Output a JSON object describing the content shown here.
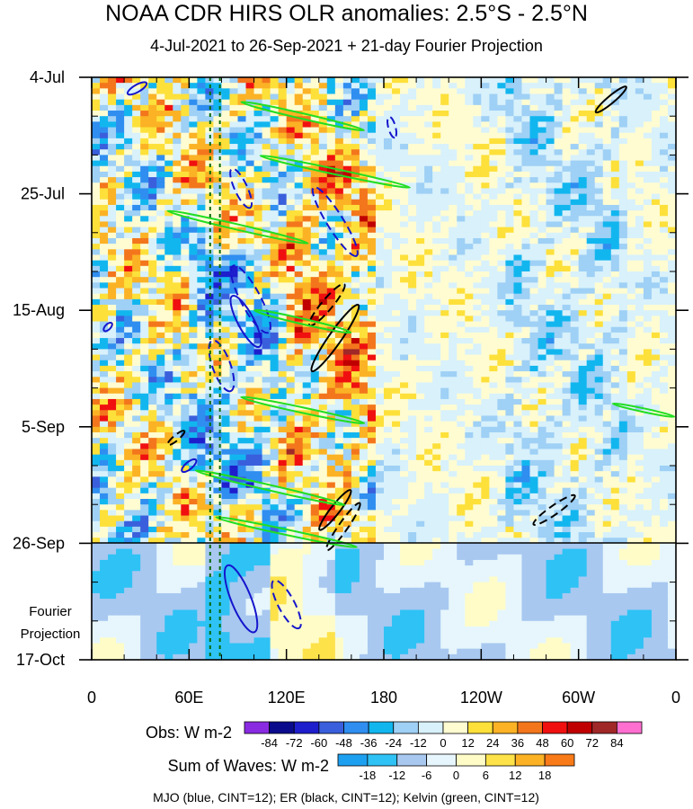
{
  "figure": {
    "title": "NOAA CDR HIRS OLR anomalies: 2.5°S - 2.5°N",
    "subtitle": "4-Jul-2021 to 26-Sep-2021 + 21-day Fourier Projection"
  },
  "chart_data": {
    "type": "heatmap",
    "title": "NOAA CDR HIRS OLR anomalies: 2.5°S - 2.5°N",
    "subtitle": "4-Jul-2021 to 26-Sep-2021 + 21-day Fourier Projection",
    "x_axis": {
      "range_lon_east": [
        0,
        360
      ],
      "ticks": [
        {
          "lon": 0,
          "label": "0"
        },
        {
          "lon": 60,
          "label": "60E"
        },
        {
          "lon": 120,
          "label": "120E"
        },
        {
          "lon": 180,
          "label": "180"
        },
        {
          "lon": 240,
          "label": "120W"
        },
        {
          "lon": 300,
          "label": "60W"
        },
        {
          "lon": 360,
          "label": "0"
        }
      ]
    },
    "y_axis": {
      "direction": "time increases downward",
      "range_days": [
        0,
        105
      ],
      "ticks": [
        {
          "day": 0,
          "label": "4-Jul"
        },
        {
          "day": 21,
          "label": "25-Jul"
        },
        {
          "day": 42,
          "label": "15-Aug"
        },
        {
          "day": 63,
          "label": "5-Sep"
        },
        {
          "day": 84,
          "label": "26-Sep"
        },
        {
          "day": 105,
          "label": "17-Oct"
        }
      ],
      "observation_end_day": 84,
      "projection_label": [
        "Fourier",
        "Projection"
      ]
    },
    "reference_lines_lon": [
      73,
      79
    ],
    "obs_colorbar": {
      "label": "Obs: W m-2",
      "levels": [
        "-84",
        "-72",
        "-60",
        "-48",
        "-36",
        "-24",
        "-12",
        "0",
        "12",
        "24",
        "36",
        "48",
        "60",
        "72",
        "84"
      ],
      "colors": [
        "#8a2be2",
        "#0a0a8c",
        "#1e1ecd",
        "#3a5fdc",
        "#2f8ef0",
        "#12b6ef",
        "#9fd0f5",
        "#d8f1fb",
        "#fffcd2",
        "#fde03a",
        "#fbb225",
        "#f3761c",
        "#f01010",
        "#c00000",
        "#a02828",
        "#ff6fd0"
      ]
    },
    "waves_colorbar": {
      "label": "Sum of Waves: W m-2",
      "levels": [
        "-18",
        "-12",
        "-6",
        "0",
        "6",
        "12",
        "18"
      ],
      "colors": [
        "#1ea0f0",
        "#2fc2f5",
        "#a8c8f0",
        "#e6f6fc",
        "#fffcc8",
        "#fde24a",
        "#fbb225",
        "#f87a18"
      ]
    },
    "wave_contours": [
      {
        "name": "MJO",
        "color": "#1515cc",
        "events": [
          {
            "lon": 28,
            "day": 2,
            "rx": 12,
            "ry": 4,
            "rot": -30,
            "style": "solid"
          },
          {
            "lon": 95,
            "day": 44,
            "rx": 32,
            "ry": 9,
            "rot": 62,
            "style": "solid"
          },
          {
            "lon": 98,
            "day": 40,
            "rx": 42,
            "ry": 11,
            "rot": 62,
            "style": "dashed"
          },
          {
            "lon": 92,
            "day": 20,
            "rx": 24,
            "ry": 7,
            "rot": 65,
            "style": "dashed"
          },
          {
            "lon": 150,
            "day": 26,
            "rx": 45,
            "ry": 9,
            "rot": 58,
            "style": "dashed"
          },
          {
            "lon": 80,
            "day": 52,
            "rx": 30,
            "ry": 10,
            "rot": 70,
            "style": "dashed"
          },
          {
            "lon": 92,
            "day": 94,
            "rx": 40,
            "ry": 11,
            "rot": 68,
            "style": "solid"
          },
          {
            "lon": 120,
            "day": 95,
            "rx": 30,
            "ry": 9,
            "rot": 62,
            "style": "dashed"
          },
          {
            "lon": 60,
            "day": 70,
            "rx": 10,
            "ry": 4,
            "rot": -40,
            "style": "solid"
          },
          {
            "lon": 185,
            "day": 9,
            "rx": 12,
            "ry": 4,
            "rot": 75,
            "style": "dashed"
          },
          {
            "lon": 10,
            "day": 45,
            "rx": 6,
            "ry": 3,
            "rot": -45,
            "style": "solid"
          }
        ]
      },
      {
        "name": "ER",
        "color": "#000000",
        "events": [
          {
            "lon": 150,
            "day": 47,
            "rx": 45,
            "ry": 7,
            "rot": -55,
            "style": "solid"
          },
          {
            "lon": 145,
            "day": 41,
            "rx": 30,
            "ry": 6,
            "rot": -50,
            "style": "dashed"
          },
          {
            "lon": 150,
            "day": 78,
            "rx": 28,
            "ry": 5,
            "rot": -52,
            "style": "solid"
          },
          {
            "lon": 155,
            "day": 81,
            "rx": 32,
            "ry": 5,
            "rot": -55,
            "style": "dashed"
          },
          {
            "lon": 320,
            "day": 4,
            "rx": 22,
            "ry": 4,
            "rot": -40,
            "style": "solid"
          },
          {
            "lon": 285,
            "day": 78,
            "rx": 28,
            "ry": 5,
            "rot": -35,
            "style": "dashed"
          },
          {
            "lon": 52,
            "day": 65,
            "rx": 12,
            "ry": 3,
            "rot": -40,
            "style": "dashed"
          }
        ]
      },
      {
        "name": "Kelvin",
        "color": "#22dd22",
        "events": [
          {
            "lon": 130,
            "day": 7,
            "rx": 70,
            "ry": 3,
            "rot": 13,
            "style": "solid"
          },
          {
            "lon": 150,
            "day": 17,
            "rx": 85,
            "ry": 3,
            "rot": 12,
            "style": "solid"
          },
          {
            "lon": 90,
            "day": 27,
            "rx": 80,
            "ry": 3,
            "rot": 13,
            "style": "solid"
          },
          {
            "lon": 130,
            "day": 44,
            "rx": 55,
            "ry": 3,
            "rot": 13,
            "style": "solid"
          },
          {
            "lon": 130,
            "day": 60,
            "rx": 70,
            "ry": 3,
            "rot": 12,
            "style": "solid"
          },
          {
            "lon": 110,
            "day": 74,
            "rx": 85,
            "ry": 3,
            "rot": 13,
            "style": "solid"
          },
          {
            "lon": 120,
            "day": 82,
            "rx": 80,
            "ry": 3,
            "rot": 12,
            "style": "solid"
          },
          {
            "lon": 340,
            "day": 60,
            "rx": 35,
            "ry": 2,
            "rot": 12,
            "style": "solid"
          }
        ]
      }
    ],
    "legend_note": "MJO (blue, CINT=12); ER (black, CINT=12); Kelvin (green, CINT=12)"
  }
}
